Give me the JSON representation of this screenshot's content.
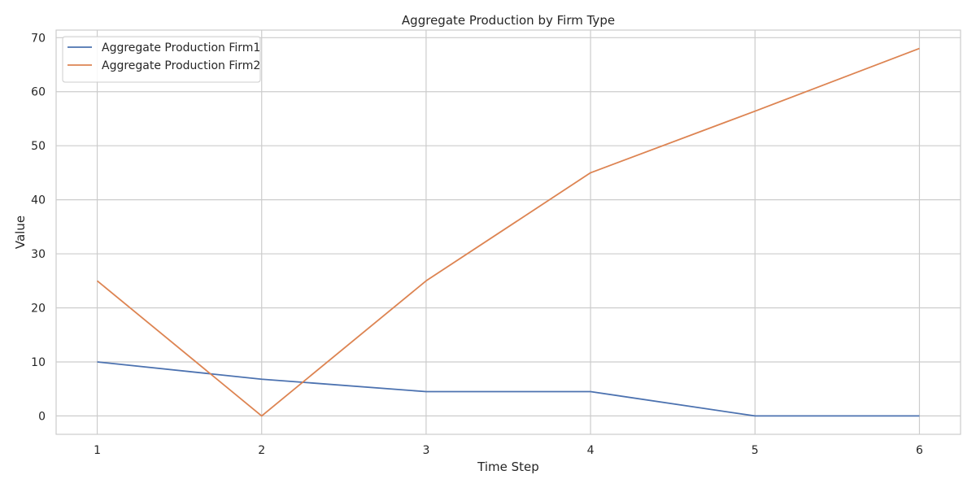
{
  "chart_data": {
    "type": "line",
    "title": "Aggregate Production by Firm Type",
    "xlabel": "Time Step",
    "ylabel": "Value",
    "x": [
      1,
      2,
      3,
      4,
      5,
      6
    ],
    "xlim": [
      0.75,
      6.25
    ],
    "ylim": [
      -3.4,
      71.4
    ],
    "xticks": [
      1,
      2,
      3,
      4,
      5,
      6
    ],
    "yticks": [
      0,
      10,
      20,
      30,
      40,
      50,
      60,
      70
    ],
    "grid": true,
    "legend_position": "top-left",
    "series": [
      {
        "name": "Aggregate Production Firm1",
        "color": "#4c72b0",
        "values": [
          10,
          6.8,
          4.5,
          4.5,
          0,
          0
        ]
      },
      {
        "name": "Aggregate Production Firm2",
        "color": "#dd8452",
        "values": [
          25,
          0,
          25,
          45,
          56.4,
          68
        ]
      }
    ]
  }
}
